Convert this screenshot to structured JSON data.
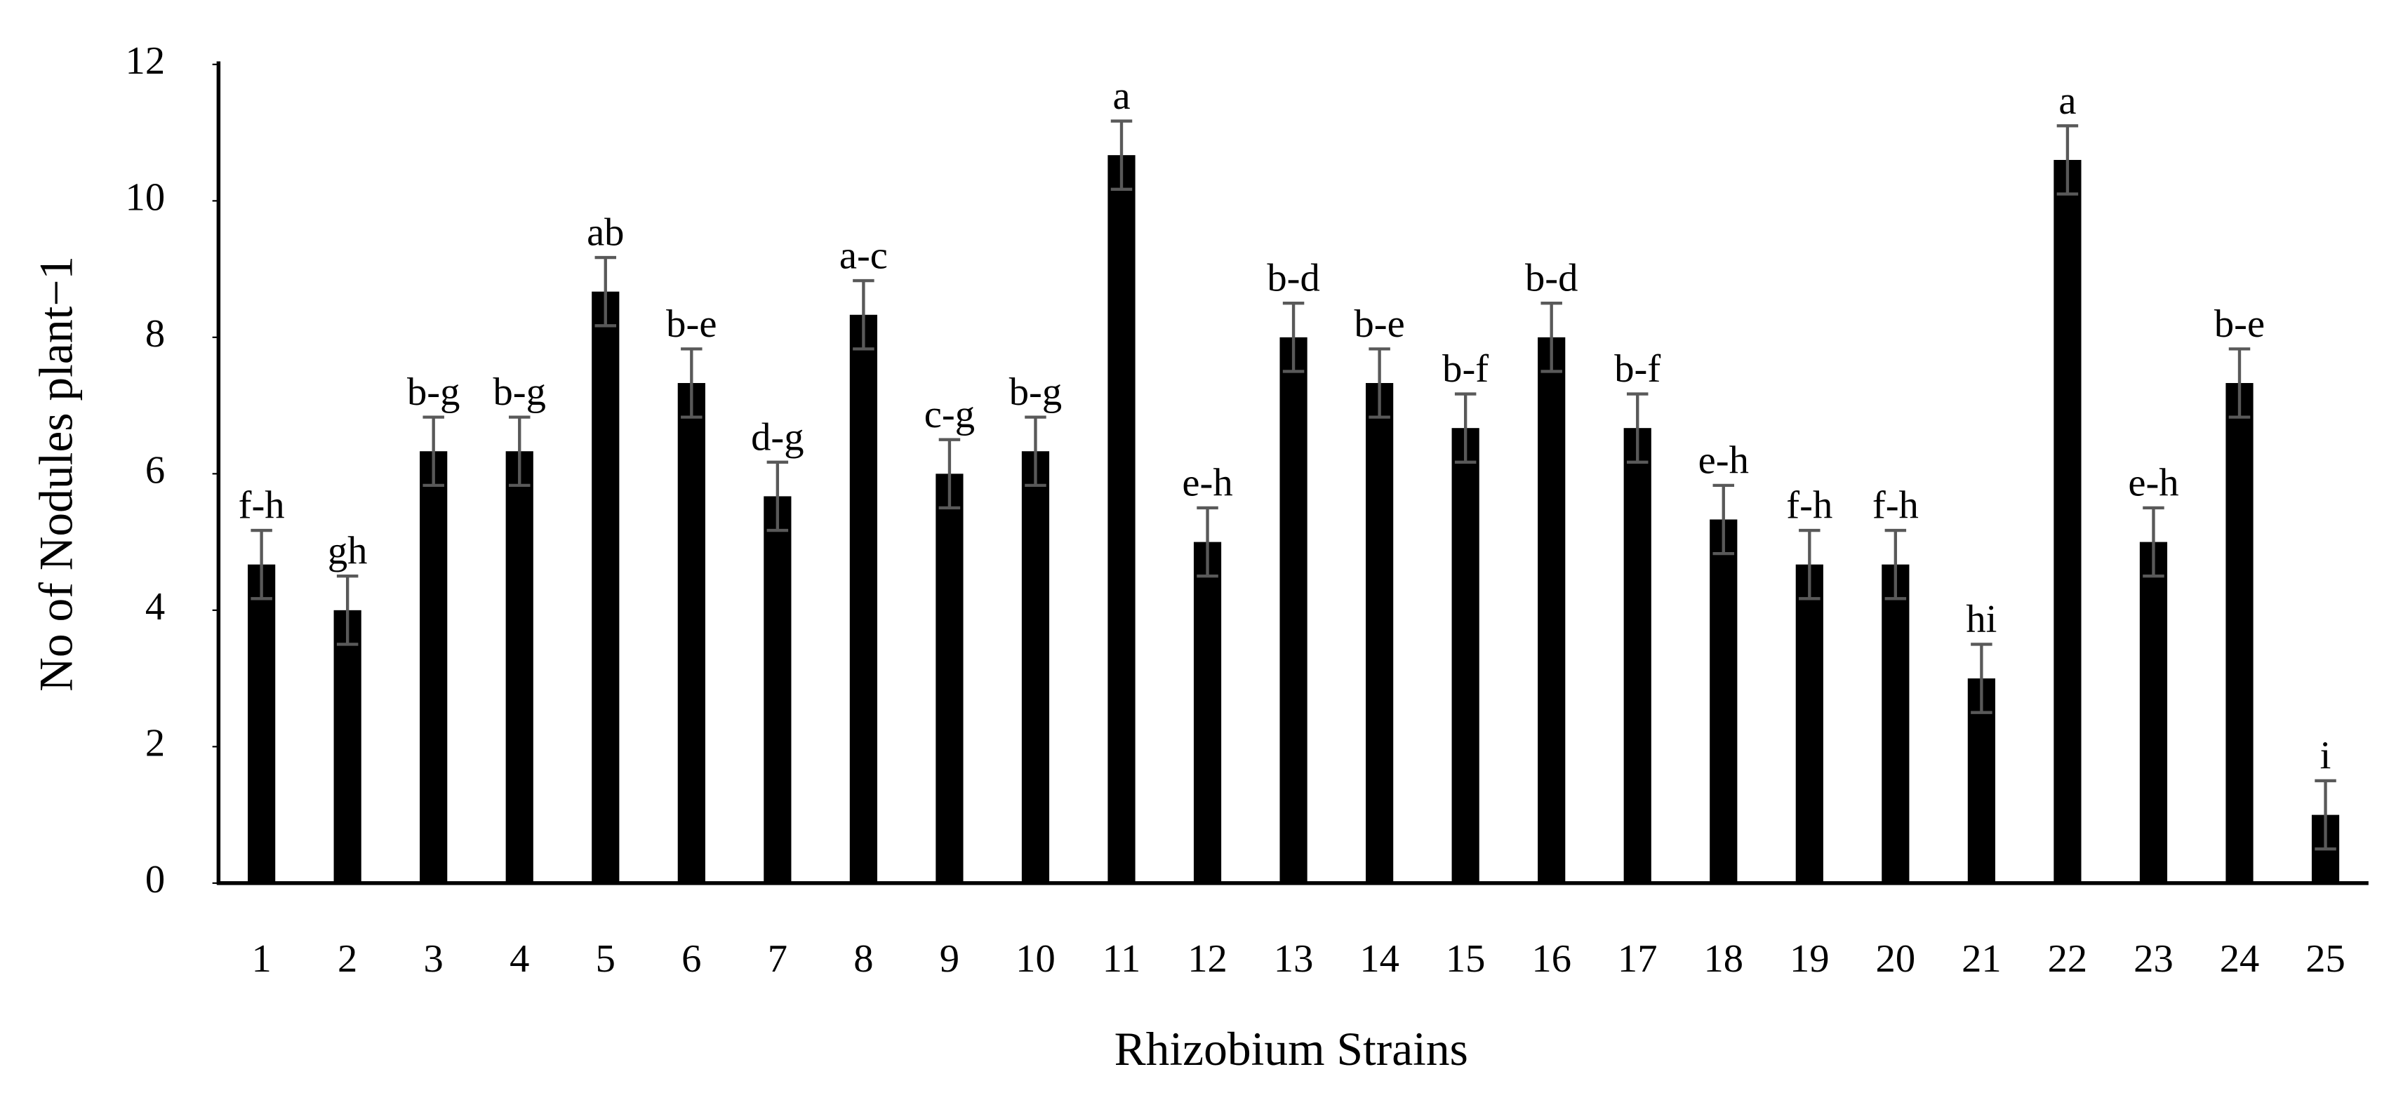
{
  "chart_data": {
    "type": "bar",
    "x_label": "Rhizobium Strains",
    "y_label": "No of Nodules plant−1",
    "categories": [
      "1",
      "2",
      "3",
      "4",
      "5",
      "6",
      "7",
      "8",
      "9",
      "10",
      "11",
      "12",
      "13",
      "14",
      "15",
      "16",
      "17",
      "18",
      "19",
      "20",
      "21",
      "22",
      "23",
      "24",
      "25"
    ],
    "values": [
      4.67,
      4.0,
      6.33,
      6.33,
      8.67,
      7.33,
      5.67,
      8.33,
      6.0,
      6.33,
      10.67,
      5.0,
      8.0,
      7.33,
      6.67,
      8.0,
      6.67,
      5.33,
      4.67,
      4.67,
      3.0,
      10.6,
      5.0,
      7.33,
      1.0
    ],
    "errors": [
      0.5,
      0.5,
      0.5,
      0.5,
      0.5,
      0.5,
      0.5,
      0.5,
      0.5,
      0.5,
      0.5,
      0.5,
      0.5,
      0.5,
      0.5,
      0.5,
      0.5,
      0.5,
      0.5,
      0.5,
      0.5,
      0.5,
      0.5,
      0.5,
      0.5
    ],
    "annotations": [
      "f-h",
      "gh",
      "b-g",
      "b-g",
      "ab",
      "b-e",
      "d-g",
      "a-c",
      "c-g",
      "b-g",
      "a",
      "e-h",
      "b-d",
      "b-e",
      "b-f",
      "b-d",
      "b-f",
      "e-h",
      "f-h",
      "f-h",
      "hi",
      "a",
      "e-h",
      "b-e",
      "i"
    ],
    "color": "#000000",
    "error_color": "#595959",
    "ylim": [
      0,
      12
    ],
    "yticks": [
      0,
      2,
      4,
      6,
      8,
      10,
      12
    ],
    "grid": false
  }
}
